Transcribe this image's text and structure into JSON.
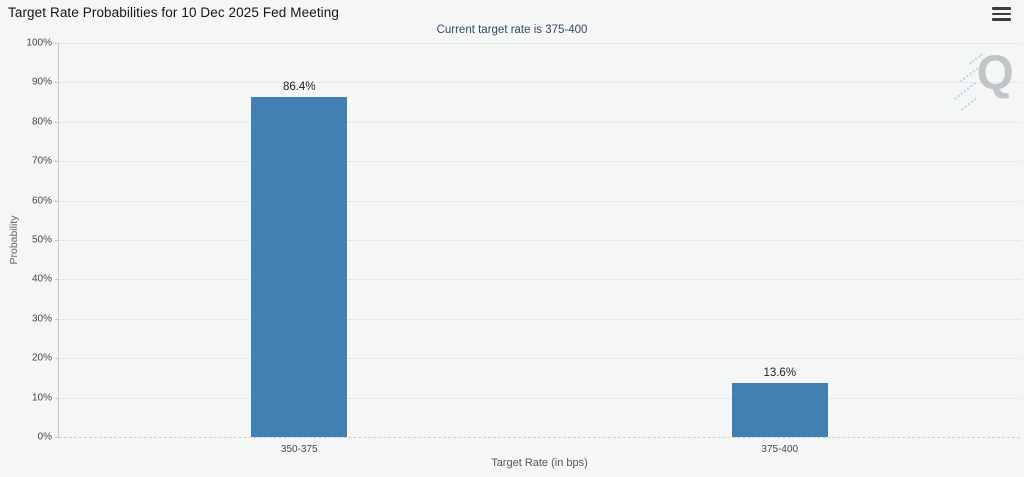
{
  "header": {
    "title": "Target Rate Probabilities for 10 Dec 2025 Fed Meeting",
    "subtitle": "Current target rate is 375-400"
  },
  "menu": {
    "icon": "hamburger-icon"
  },
  "watermark": {
    "letter": "Q"
  },
  "chart_data": {
    "type": "bar",
    "title": "Target Rate Probabilities for 10 Dec 2025 Fed Meeting",
    "subtitle": "Current target rate is 375-400",
    "categories": [
      "350-375",
      "375-400"
    ],
    "values": [
      86.4,
      13.6
    ],
    "value_labels": [
      "86.4%",
      "13.6%"
    ],
    "xlabel": "Target Rate (in bps)",
    "ylabel": "Probability",
    "ylim": [
      0,
      100
    ],
    "ytick_step": 10,
    "ytick_labels": [
      "0%",
      "10%",
      "20%",
      "30%",
      "40%",
      "50%",
      "60%",
      "70%",
      "80%",
      "90%",
      "100%"
    ],
    "grid": "horizontal-dotted",
    "legend": "none",
    "bar_color": "#4280b4",
    "background_color": "#f5f6f6"
  }
}
